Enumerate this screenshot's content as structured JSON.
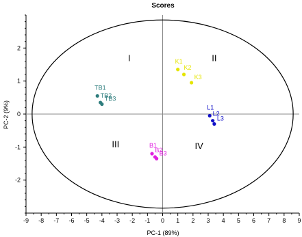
{
  "chart_data": {
    "type": "scatter",
    "title": "Scores",
    "xlabel": "PC-1 (89%)",
    "ylabel": "PC-2 (9%)",
    "xlim": [
      -9,
      9
    ],
    "ylim": [
      -3,
      3
    ],
    "xticks": [
      "-9",
      "-8",
      "-7",
      "-6",
      "-5",
      "-4",
      "-3",
      "-2",
      "-1",
      "0",
      "1",
      "2",
      "3",
      "4",
      "5",
      "6",
      "7",
      "8",
      "9"
    ],
    "yticks": [
      "2",
      "1",
      "0",
      "-1",
      "-2"
    ],
    "grid": false,
    "quadrant_labels": [
      {
        "text": "I",
        "x": -2.2,
        "y": 1.6
      },
      {
        "text": "II",
        "x": 3.4,
        "y": 1.6
      },
      {
        "text": "III",
        "x": -3.1,
        "y": -1.0
      },
      {
        "text": "IV",
        "x": 2.4,
        "y": -1.05
      }
    ],
    "series": [
      {
        "color": "#2e7d7d",
        "points": [
          {
            "label": "TB1",
            "x": -4.3,
            "y": 0.55
          },
          {
            "label": "TB2",
            "x": -4.1,
            "y": 0.35
          },
          {
            "label": "TB3",
            "x": -4.0,
            "y": 0.3
          }
        ]
      },
      {
        "color": "#e5e500",
        "points": [
          {
            "label": "K1",
            "x": 1.0,
            "y": 1.35
          },
          {
            "label": "K2",
            "x": 1.4,
            "y": 1.2
          },
          {
            "label": "K3",
            "x": 1.9,
            "y": 0.95
          }
        ]
      },
      {
        "color": "#1010c8",
        "points": [
          {
            "label": "L1",
            "x": 3.1,
            "y": -0.05
          },
          {
            "label": "L2",
            "x": 3.3,
            "y": -0.2
          },
          {
            "label": "L3",
            "x": 3.4,
            "y": -0.3
          }
        ]
      },
      {
        "color": "#e020e0",
        "points": [
          {
            "label": "B1",
            "x": -0.7,
            "y": -1.2
          },
          {
            "label": "B2",
            "x": -0.5,
            "y": -1.3
          },
          {
            "label": "B3",
            "x": -0.4,
            "y": -1.35
          }
        ]
      }
    ]
  }
}
